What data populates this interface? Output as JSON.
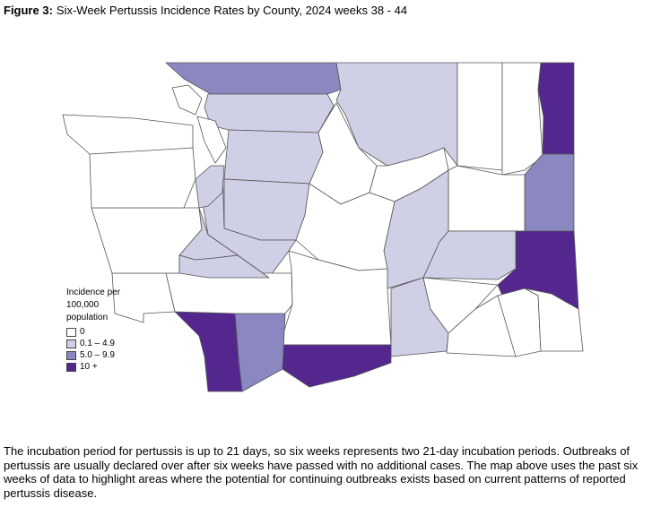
{
  "header": {
    "label": "Figure 3:",
    "title": "Six-Week Pertussis Incidence Rates by County, 2024 weeks 38 - 44"
  },
  "legend": {
    "title": "Incidence per 100,000 population",
    "items": [
      {
        "label": "0",
        "color": "#ffffff"
      },
      {
        "label": "0.1 – 4.9",
        "color": "#cfcfe6"
      },
      {
        "label": "5.0 – 9.9",
        "color": "#8b87c1"
      },
      {
        "label": "10 +",
        "color": "#54278f"
      }
    ]
  },
  "body": {
    "text": "The incubation period for pertussis is up to 21 days, so six weeks represents two 21-day incubation periods. Outbreaks of pertussis are usually declared over after six weeks have passed with no additional cases. The map above uses the past six weeks of data to highlight areas where the potential for continuing outbreaks exists based on current patterns of reported pertussis disease."
  }
}
